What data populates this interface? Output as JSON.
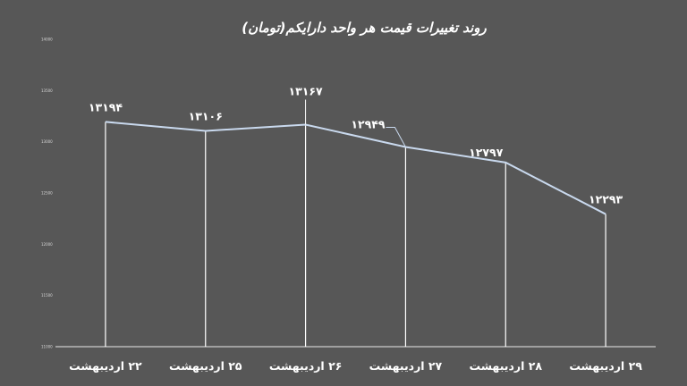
{
  "chart_data": {
    "type": "line",
    "title": "روند تغییرات قیمت هر واحد دارایکم(تومان)",
    "categories": [
      "۲۲ اردیبهشت",
      "۲۵ اردیبهشت",
      "۲۶ اردیبهشت",
      "۲۷ اردیبهشت",
      "۲۸ اردیبهشت",
      "۲۹ اردیبهشت"
    ],
    "values": [
      13194,
      13106,
      13167,
      12949,
      12797,
      12293
    ],
    "data_labels": [
      "۱۳۱۹۴",
      "۱۳۱۰۶",
      "۱۳۱۶۷",
      "۱۲۹۴۹",
      "۱۲۷۹۷",
      "۱۲۲۹۳"
    ],
    "ylim": [
      11000,
      14000
    ],
    "yticks": [
      "11000",
      "11500",
      "12000",
      "12500",
      "13000",
      "13500",
      "14000"
    ],
    "grid": false,
    "drop_lines": true,
    "colors": {
      "line": "#c9d9ee",
      "background": "#575757",
      "text": "#ffffff",
      "drop_line": "#ffffff"
    }
  }
}
